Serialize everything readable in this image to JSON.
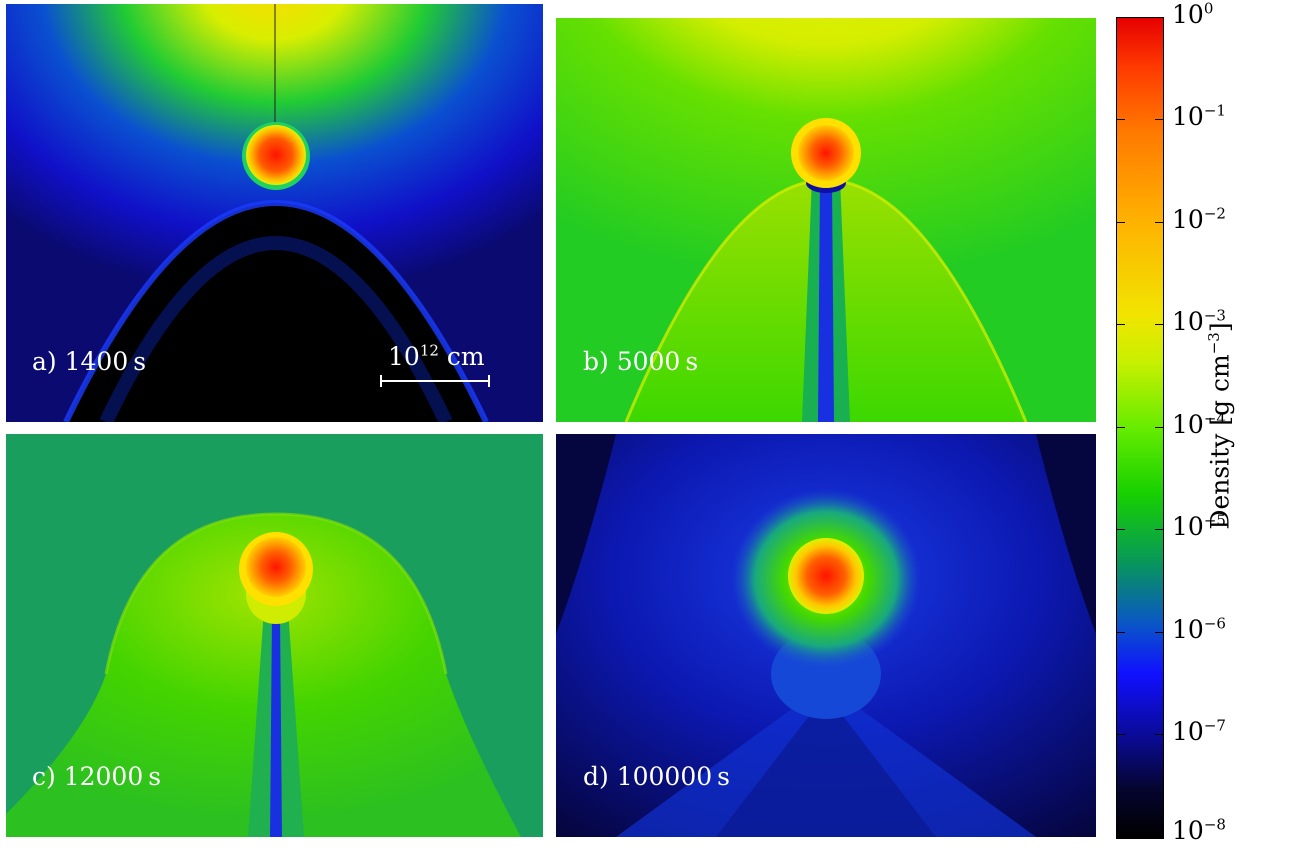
{
  "panels": [
    {
      "label": "a) 1400 s",
      "scale_label": "10",
      "scale_exp": "12",
      "scale_unit": " cm"
    },
    {
      "label": "b) 5000 s"
    },
    {
      "label": "c) 12000 s"
    },
    {
      "label": "d) 100000 s"
    }
  ],
  "colorbar": {
    "title": "Density [g cm",
    "title_exp": "−3",
    "title_close": "]",
    "base": "10",
    "exponents": [
      "0",
      "−1",
      "−2",
      "−3",
      "−4",
      "−5",
      "−6",
      "−7",
      "−8"
    ]
  },
  "colors": {
    "core": "#ff2200",
    "halo": "#ffd200",
    "green": "#44dd00",
    "blue": "#1414ff",
    "black": "#000000"
  }
}
